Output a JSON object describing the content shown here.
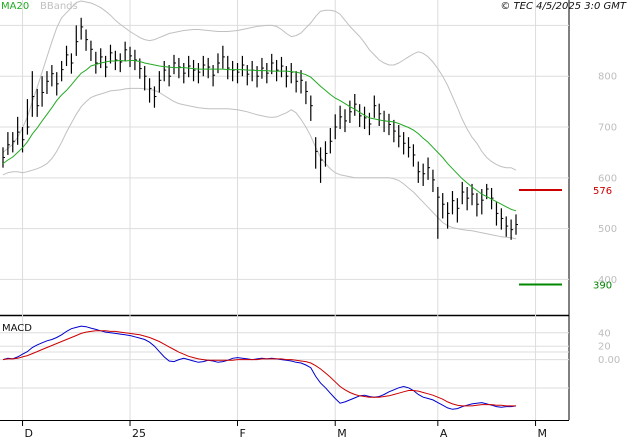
{
  "header": {
    "indicator_label": "MA20",
    "bands_label": "BBands",
    "copyright": "© TEC 4/5/2025 3:0 GMT"
  },
  "colors": {
    "ma": "#22aa22",
    "bands": "#c0c0c0",
    "bars": "#000000",
    "resistance": "#cc0000",
    "support": "#008800",
    "macd": "#0000cc",
    "signal": "#cc0000",
    "grid": "#dddddd"
  },
  "chart_data": [
    {
      "type": "line",
      "subtype": "ohlc",
      "title": "",
      "grid": true,
      "y_ticks": [
        400,
        500,
        600,
        700,
        800
      ],
      "y_range": [
        330,
        950
      ],
      "x_ticks": [
        {
          "label": "D",
          "index": 4
        },
        {
          "label": "25",
          "index": 26
        },
        {
          "label": "F",
          "index": 48
        },
        {
          "label": "M",
          "index": 68
        },
        {
          "label": "A",
          "index": 89
        },
        {
          "label": "M",
          "index": 109
        }
      ],
      "close": [
        640,
        665,
        672,
        690,
        675,
        700,
        760,
        742,
        768,
        790,
        805,
        785,
        813,
        842,
        826,
        868,
        897,
        872,
        853,
        826,
        838,
        818,
        846,
        832,
        828,
        852,
        840,
        832,
        815,
        800,
        776,
        760,
        792,
        812,
        800,
        826,
        818,
        806,
        820,
        812,
        808,
        822,
        818,
        802,
        826,
        838,
        816,
        812,
        808,
        822,
        804,
        812,
        800,
        816,
        806,
        826,
        812,
        820,
        800,
        808,
        790,
        792,
        770,
        742,
        652,
        635,
        648,
        672,
        700,
        720,
        712,
        730,
        745,
        722,
        718,
        706,
        742,
        726,
        712,
        705,
        692,
        682,
        668,
        660,
        645,
        612,
        608,
        620,
        596,
        562,
        548,
        530,
        555,
        540,
        572,
        560,
        568,
        548,
        556,
        578,
        560,
        530,
        520,
        505,
        498,
        508
      ],
      "high": [
        660,
        690,
        690,
        720,
        700,
        755,
        810,
        775,
        800,
        810,
        822,
        808,
        830,
        860,
        845,
        900,
        915,
        892,
        870,
        848,
        855,
        840,
        862,
        850,
        845,
        868,
        858,
        852,
        835,
        820,
        796,
        780,
        810,
        830,
        822,
        842,
        836,
        826,
        840,
        832,
        826,
        840,
        836,
        822,
        845,
        860,
        840,
        830,
        826,
        840,
        822,
        830,
        820,
        836,
        826,
        844,
        832,
        838,
        820,
        826,
        810,
        812,
        790,
        762,
        680,
        660,
        672,
        698,
        725,
        742,
        735,
        752,
        765,
        745,
        740,
        728,
        762,
        746,
        732,
        726,
        714,
        704,
        690,
        680,
        666,
        632,
        628,
        640,
        616,
        582,
        570,
        552,
        574,
        560,
        592,
        582,
        588,
        570,
        578,
        588,
        580,
        552,
        540,
        524,
        518,
        528
      ],
      "low": [
        620,
        645,
        650,
        665,
        650,
        685,
        720,
        720,
        740,
        765,
        780,
        762,
        790,
        820,
        805,
        840,
        872,
        850,
        830,
        805,
        816,
        798,
        825,
        812,
        808,
        830,
        818,
        812,
        795,
        772,
        748,
        738,
        768,
        790,
        780,
        804,
        796,
        786,
        798,
        790,
        786,
        800,
        796,
        780,
        806,
        815,
        794,
        790,
        786,
        800,
        782,
        790,
        778,
        795,
        786,
        804,
        790,
        798,
        778,
        786,
        768,
        766,
        745,
        712,
        618,
        590,
        622,
        648,
        676,
        696,
        690,
        708,
        722,
        700,
        696,
        684,
        718,
        702,
        690,
        684,
        670,
        660,
        646,
        640,
        622,
        590,
        584,
        596,
        572,
        480,
        520,
        500,
        528,
        512,
        548,
        536,
        546,
        524,
        528,
        558,
        538,
        506,
        498,
        484,
        478,
        488
      ],
      "ma20": [
        628,
        635,
        641,
        650,
        659,
        671,
        686,
        698,
        712,
        725,
        738,
        752,
        763,
        772,
        783,
        795,
        806,
        812,
        820,
        823,
        826,
        828,
        830,
        830,
        831,
        830,
        831,
        831,
        829,
        826,
        824,
        822,
        820,
        819,
        818,
        817,
        817,
        817,
        816,
        815,
        814,
        814,
        814,
        814,
        814,
        814,
        813,
        813,
        813,
        813,
        812,
        812,
        811,
        811,
        811,
        810,
        810,
        810,
        810,
        809,
        808,
        806,
        803,
        798,
        789,
        780,
        772,
        764,
        757,
        752,
        746,
        740,
        735,
        729,
        723,
        718,
        716,
        714,
        712,
        711,
        710,
        707,
        703,
        699,
        694,
        687,
        678,
        670,
        660,
        650,
        640,
        628,
        618,
        608,
        598,
        590,
        582,
        575,
        568,
        563,
        558,
        553,
        548,
        543,
        538,
        535
      ],
      "bb_upper": [
        650,
        658,
        666,
        680,
        698,
        720,
        750,
        778,
        808,
        838,
        868,
        895,
        915,
        925,
        935,
        945,
        948,
        946,
        944,
        940,
        935,
        928,
        920,
        910,
        902,
        895,
        888,
        882,
        876,
        872,
        870,
        872,
        876,
        880,
        884,
        886,
        888,
        890,
        891,
        892,
        892,
        891,
        890,
        889,
        888,
        888,
        888,
        889,
        890,
        892,
        894,
        896,
        898,
        899,
        900,
        900,
        898,
        892,
        884,
        878,
        880,
        885,
        895,
        905,
        918,
        928,
        930,
        930,
        928,
        922,
        910,
        898,
        888,
        878,
        866,
        852,
        842,
        832,
        826,
        822,
        822,
        826,
        832,
        838,
        844,
        848,
        845,
        838,
        828,
        815,
        800,
        782,
        760,
        738,
        715,
        696,
        680,
        668,
        652,
        640,
        632,
        626,
        622,
        620,
        620,
        615
      ],
      "bb_lower": [
        606,
        610,
        612,
        612,
        610,
        612,
        615,
        618,
        622,
        628,
        638,
        652,
        670,
        690,
        708,
        725,
        740,
        750,
        758,
        762,
        765,
        768,
        771,
        772,
        773,
        775,
        776,
        776,
        776,
        775,
        774,
        772,
        768,
        762,
        756,
        750,
        746,
        744,
        742,
        740,
        738,
        737,
        736,
        736,
        736,
        736,
        736,
        735,
        734,
        732,
        730,
        727,
        724,
        722,
        720,
        719,
        720,
        724,
        728,
        734,
        728,
        715,
        700,
        682,
        660,
        640,
        628,
        618,
        610,
        606,
        604,
        602,
        600,
        600,
        600,
        600,
        600,
        600,
        600,
        600,
        598,
        595,
        588,
        580,
        572,
        562,
        552,
        542,
        532,
        522,
        512,
        506,
        502,
        500,
        498,
        497,
        496,
        494,
        492,
        490,
        488,
        486,
        484,
        483,
        482,
        480
      ],
      "levels": [
        {
          "label": "576",
          "value": 576,
          "role": "resistance"
        },
        {
          "label": "390",
          "value": 390,
          "role": "support"
        }
      ]
    },
    {
      "type": "line",
      "title": "MACD",
      "grid": true,
      "y_ticks": [
        {
          "label": "40",
          "value": 40
        },
        {
          "label": "20",
          "value": 20
        },
        {
          "label": "0.00",
          "value": 0
        }
      ],
      "y_range": [
        -90,
        65
      ],
      "series": [
        {
          "key": "macd",
          "values": [
            0,
            2,
            1,
            4,
            8,
            12,
            18,
            22,
            25,
            28,
            30,
            33,
            37,
            42,
            46,
            48,
            50,
            49,
            47,
            45,
            43,
            41,
            40,
            39,
            38,
            37,
            36,
            34,
            32,
            30,
            26,
            20,
            12,
            4,
            -2,
            -3,
            0,
            2,
            0,
            -2,
            -4,
            -3,
            -1,
            -2,
            -4,
            -3,
            -1,
            2,
            3,
            2,
            1,
            0,
            1,
            2,
            1,
            2,
            1,
            0,
            -1,
            -2,
            -4,
            -5,
            -8,
            -12,
            -25,
            -35,
            -42,
            -50,
            -58,
            -65,
            -63,
            -60,
            -57,
            -54,
            -53,
            -55,
            -56,
            -55,
            -52,
            -48,
            -45,
            -42,
            -40,
            -42,
            -46,
            -52,
            -56,
            -58,
            -60,
            -64,
            -68,
            -72,
            -74,
            -73,
            -70,
            -68,
            -66,
            -65,
            -64,
            -66,
            -68,
            -70,
            -71,
            -70,
            -70,
            -69
          ]
        },
        {
          "key": "signal",
          "values": [
            0,
            1,
            1,
            2,
            4,
            6,
            9,
            12,
            15,
            18,
            21,
            24,
            27,
            30,
            33,
            36,
            39,
            41,
            42,
            43,
            43,
            43,
            42,
            42,
            41,
            40,
            39,
            38,
            37,
            35,
            33,
            30,
            27,
            23,
            19,
            15,
            11,
            8,
            5,
            3,
            1,
            0,
            -1,
            -1,
            -1,
            -1,
            -1,
            -1,
            0,
            0,
            0,
            0,
            0,
            1,
            1,
            1,
            1,
            1,
            0,
            0,
            -1,
            -2,
            -3,
            -5,
            -9,
            -14,
            -20,
            -26,
            -33,
            -40,
            -45,
            -49,
            -52,
            -54,
            -55,
            -56,
            -56,
            -56,
            -55,
            -54,
            -52,
            -50,
            -48,
            -46,
            -46,
            -47,
            -49,
            -51,
            -53,
            -56,
            -59,
            -63,
            -66,
            -68,
            -69,
            -69,
            -69,
            -68,
            -67,
            -67,
            -67,
            -68,
            -68,
            -69,
            -69,
            -69
          ]
        }
      ]
    }
  ]
}
